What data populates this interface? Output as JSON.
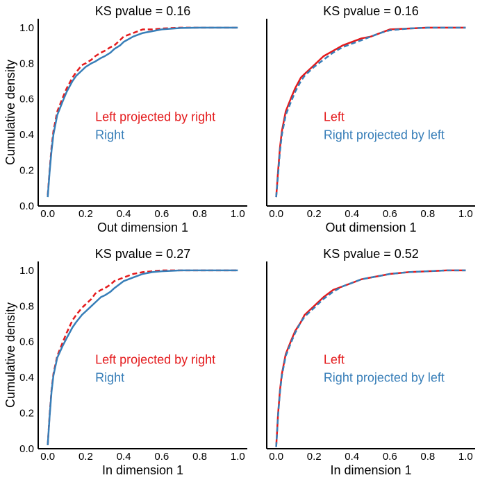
{
  "chart_data": [
    {
      "type": "line",
      "title": "KS pvalue = 0.16",
      "xlabel": "Out dimension 1",
      "ylabel": "Cumulative density",
      "xlim": [
        -0.05,
        1.05
      ],
      "ylim": [
        0.0,
        1.05
      ],
      "xticks": [
        "0.0",
        "0.2",
        "0.4",
        "0.6",
        "0.8",
        "1.0"
      ],
      "yticks": [
        "0.0",
        "0.2",
        "0.4",
        "0.6",
        "0.8",
        "1.0"
      ],
      "show_yticklabels": true,
      "series": [
        {
          "name": "Left projected by right",
          "color": "#e41a1c",
          "dash": "dashed",
          "x": [
            0.0,
            0.01,
            0.02,
            0.03,
            0.05,
            0.08,
            0.1,
            0.13,
            0.15,
            0.18,
            0.2,
            0.23,
            0.25,
            0.28,
            0.3,
            0.33,
            0.35,
            0.38,
            0.4,
            0.45,
            0.5,
            0.55,
            0.6,
            0.7,
            0.8,
            0.9,
            1.0
          ],
          "y": [
            0.06,
            0.2,
            0.33,
            0.42,
            0.53,
            0.61,
            0.66,
            0.72,
            0.75,
            0.79,
            0.8,
            0.82,
            0.84,
            0.86,
            0.87,
            0.89,
            0.9,
            0.93,
            0.95,
            0.97,
            0.99,
            0.99,
            0.995,
            1.0,
            1.0,
            1.0,
            1.0
          ]
        },
        {
          "name": "Right",
          "color": "#377eb8",
          "dash": "solid",
          "x": [
            0.0,
            0.01,
            0.02,
            0.03,
            0.05,
            0.08,
            0.1,
            0.13,
            0.15,
            0.18,
            0.2,
            0.23,
            0.25,
            0.28,
            0.3,
            0.33,
            0.35,
            0.38,
            0.4,
            0.45,
            0.5,
            0.55,
            0.6,
            0.7,
            0.8,
            0.9,
            1.0
          ],
          "y": [
            0.05,
            0.19,
            0.31,
            0.4,
            0.51,
            0.59,
            0.64,
            0.7,
            0.73,
            0.76,
            0.78,
            0.8,
            0.81,
            0.83,
            0.84,
            0.86,
            0.88,
            0.9,
            0.92,
            0.95,
            0.97,
            0.98,
            0.99,
            0.998,
            1.0,
            1.0,
            1.0
          ]
        }
      ]
    },
    {
      "type": "line",
      "title": "KS pvalue = 0.16",
      "xlabel": "Out dimension 1",
      "ylabel": "",
      "xlim": [
        -0.05,
        1.05
      ],
      "ylim": [
        0.0,
        1.05
      ],
      "xticks": [
        "0.0",
        "0.2",
        "0.4",
        "0.6",
        "0.8",
        "1.0"
      ],
      "yticks": [
        "0.0",
        "0.2",
        "0.4",
        "0.6",
        "0.8",
        "1.0"
      ],
      "show_yticklabels": false,
      "series": [
        {
          "name": "Left",
          "color": "#e41a1c",
          "dash": "solid",
          "x": [
            0.0,
            0.01,
            0.02,
            0.03,
            0.05,
            0.08,
            0.1,
            0.13,
            0.15,
            0.18,
            0.2,
            0.25,
            0.3,
            0.35,
            0.4,
            0.45,
            0.5,
            0.55,
            0.6,
            0.7,
            0.8,
            0.9,
            1.0
          ],
          "y": [
            0.05,
            0.2,
            0.33,
            0.42,
            0.53,
            0.61,
            0.66,
            0.72,
            0.74,
            0.77,
            0.79,
            0.84,
            0.87,
            0.9,
            0.92,
            0.94,
            0.95,
            0.97,
            0.99,
            0.995,
            1.0,
            1.0,
            1.0
          ]
        },
        {
          "name": "Right projected by left",
          "color": "#377eb8",
          "dash": "dashed",
          "x": [
            0.0,
            0.01,
            0.02,
            0.03,
            0.05,
            0.08,
            0.1,
            0.13,
            0.15,
            0.18,
            0.2,
            0.25,
            0.3,
            0.35,
            0.4,
            0.45,
            0.5,
            0.55,
            0.6,
            0.7,
            0.8,
            0.9,
            1.0
          ],
          "y": [
            0.05,
            0.18,
            0.31,
            0.4,
            0.51,
            0.59,
            0.64,
            0.7,
            0.73,
            0.76,
            0.78,
            0.82,
            0.86,
            0.89,
            0.91,
            0.93,
            0.95,
            0.97,
            0.985,
            0.995,
            1.0,
            1.0,
            1.0
          ]
        }
      ]
    },
    {
      "type": "line",
      "title": "KS pvalue = 0.27",
      "xlabel": "In dimension 1",
      "ylabel": "Cumulative density",
      "xlim": [
        -0.05,
        1.05
      ],
      "ylim": [
        0.0,
        1.05
      ],
      "xticks": [
        "0.0",
        "0.2",
        "0.4",
        "0.6",
        "0.8",
        "1.0"
      ],
      "yticks": [
        "0.0",
        "0.2",
        "0.4",
        "0.6",
        "0.8",
        "1.0"
      ],
      "show_yticklabels": true,
      "series": [
        {
          "name": "Left projected by right",
          "color": "#e41a1c",
          "dash": "dashed",
          "x": [
            0.0,
            0.01,
            0.02,
            0.03,
            0.05,
            0.08,
            0.1,
            0.13,
            0.15,
            0.18,
            0.2,
            0.23,
            0.25,
            0.28,
            0.3,
            0.33,
            0.35,
            0.4,
            0.45,
            0.5,
            0.55,
            0.6,
            0.7,
            0.8,
            0.9,
            1.0
          ],
          "y": [
            0.02,
            0.19,
            0.33,
            0.42,
            0.52,
            0.6,
            0.65,
            0.72,
            0.75,
            0.79,
            0.81,
            0.84,
            0.87,
            0.89,
            0.9,
            0.92,
            0.94,
            0.96,
            0.98,
            0.99,
            0.995,
            1.0,
            1.0,
            1.0,
            1.0,
            1.0
          ]
        },
        {
          "name": "Right",
          "color": "#377eb8",
          "dash": "solid",
          "x": [
            0.0,
            0.01,
            0.02,
            0.03,
            0.05,
            0.08,
            0.1,
            0.13,
            0.15,
            0.18,
            0.2,
            0.23,
            0.25,
            0.28,
            0.3,
            0.33,
            0.35,
            0.4,
            0.45,
            0.5,
            0.55,
            0.6,
            0.7,
            0.8,
            0.9,
            1.0
          ],
          "y": [
            0.02,
            0.18,
            0.32,
            0.41,
            0.51,
            0.58,
            0.62,
            0.68,
            0.71,
            0.75,
            0.77,
            0.8,
            0.82,
            0.85,
            0.86,
            0.88,
            0.9,
            0.94,
            0.96,
            0.98,
            0.99,
            0.995,
            1.0,
            1.0,
            1.0,
            1.0
          ]
        }
      ]
    },
    {
      "type": "line",
      "title": "KS pvalue = 0.52",
      "xlabel": "In dimension 1",
      "ylabel": "",
      "xlim": [
        -0.05,
        1.05
      ],
      "ylim": [
        0.0,
        1.05
      ],
      "xticks": [
        "0.0",
        "0.2",
        "0.4",
        "0.6",
        "0.8",
        "1.0"
      ],
      "yticks": [
        "0.0",
        "0.2",
        "0.4",
        "0.6",
        "0.8",
        "1.0"
      ],
      "show_yticklabels": false,
      "series": [
        {
          "name": "Left",
          "color": "#e41a1c",
          "dash": "solid",
          "x": [
            0.0,
            0.01,
            0.02,
            0.03,
            0.05,
            0.08,
            0.1,
            0.13,
            0.15,
            0.18,
            0.2,
            0.25,
            0.3,
            0.35,
            0.4,
            0.45,
            0.5,
            0.55,
            0.6,
            0.7,
            0.8,
            0.9,
            1.0
          ],
          "y": [
            0.01,
            0.2,
            0.33,
            0.42,
            0.53,
            0.61,
            0.66,
            0.71,
            0.75,
            0.78,
            0.8,
            0.85,
            0.89,
            0.91,
            0.93,
            0.95,
            0.96,
            0.97,
            0.98,
            0.99,
            0.995,
            1.0,
            1.0
          ]
        },
        {
          "name": "Right projected by left",
          "color": "#377eb8",
          "dash": "dashed",
          "x": [
            0.0,
            0.01,
            0.02,
            0.03,
            0.05,
            0.08,
            0.1,
            0.13,
            0.15,
            0.18,
            0.2,
            0.25,
            0.3,
            0.35,
            0.4,
            0.45,
            0.5,
            0.55,
            0.6,
            0.7,
            0.8,
            0.9,
            1.0
          ],
          "y": [
            0.01,
            0.19,
            0.32,
            0.41,
            0.52,
            0.6,
            0.65,
            0.71,
            0.74,
            0.77,
            0.79,
            0.84,
            0.88,
            0.91,
            0.93,
            0.95,
            0.96,
            0.97,
            0.98,
            0.99,
            0.995,
            1.0,
            1.0
          ]
        }
      ]
    }
  ]
}
